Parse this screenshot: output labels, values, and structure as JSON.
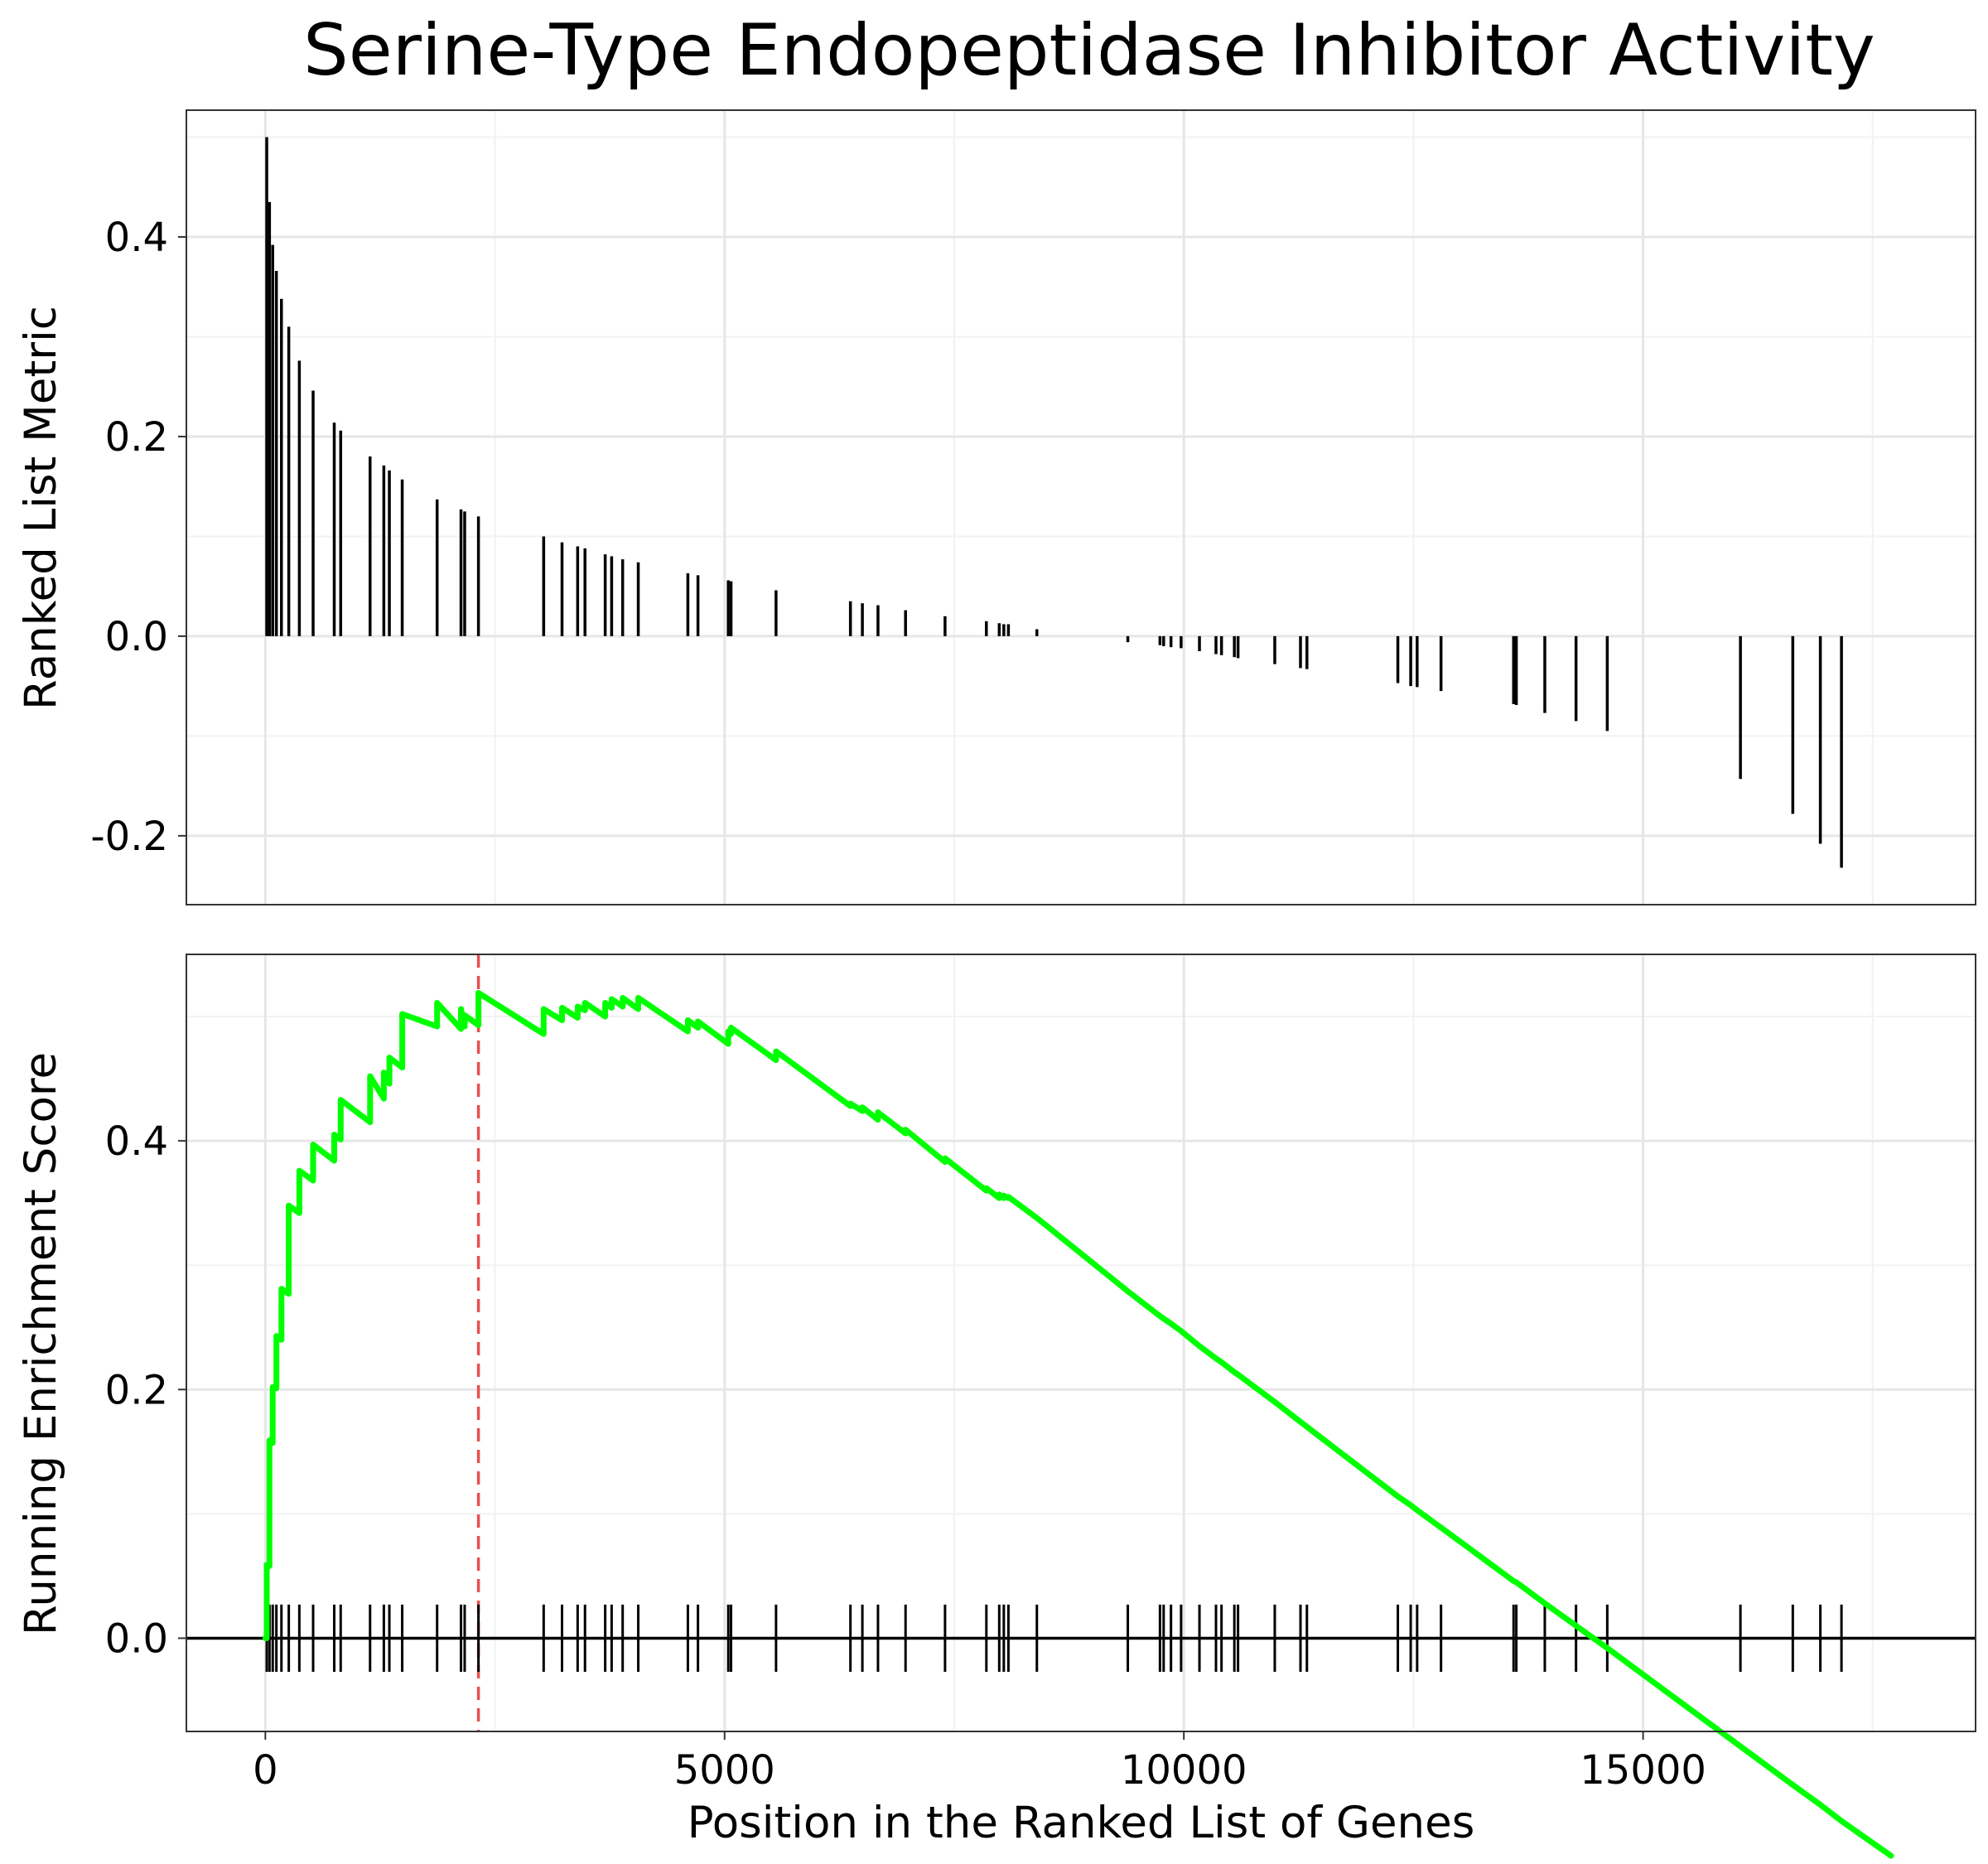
{
  "title": "Serine-Type Endopeptidase Inhibitor Activity",
  "chart_data": [
    {
      "type": "bar",
      "panel": "top",
      "title": "Serine-Type Endopeptidase Inhibitor Activity",
      "xlabel": "",
      "ylabel": "Ranked List Metric",
      "xlim": [
        -860,
        18620
      ],
      "ylim": [
        -0.269,
        0.527
      ],
      "yticks": [
        -0.2,
        0.0,
        0.2,
        0.4
      ],
      "ytick_labels": [
        "-0.2",
        "0.0",
        "0.2",
        "0.4"
      ],
      "grid": true,
      "points": [
        {
          "x": 15,
          "y": 0.5
        },
        {
          "x": 45,
          "y": 0.435
        },
        {
          "x": 80,
          "y": 0.392
        },
        {
          "x": 120,
          "y": 0.366
        },
        {
          "x": 175,
          "y": 0.338
        },
        {
          "x": 255,
          "y": 0.31
        },
        {
          "x": 370,
          "y": 0.276
        },
        {
          "x": 520,
          "y": 0.246
        },
        {
          "x": 750,
          "y": 0.214
        },
        {
          "x": 820,
          "y": 0.206
        },
        {
          "x": 1140,
          "y": 0.18
        },
        {
          "x": 1290,
          "y": 0.171
        },
        {
          "x": 1350,
          "y": 0.166
        },
        {
          "x": 1490,
          "y": 0.157
        },
        {
          "x": 1870,
          "y": 0.137
        },
        {
          "x": 2130,
          "y": 0.127
        },
        {
          "x": 2170,
          "y": 0.125
        },
        {
          "x": 2320,
          "y": 0.12
        },
        {
          "x": 3030,
          "y": 0.1
        },
        {
          "x": 3230,
          "y": 0.094
        },
        {
          "x": 3400,
          "y": 0.09
        },
        {
          "x": 3480,
          "y": 0.088
        },
        {
          "x": 3700,
          "y": 0.082
        },
        {
          "x": 3770,
          "y": 0.08
        },
        {
          "x": 3890,
          "y": 0.077
        },
        {
          "x": 4060,
          "y": 0.074
        },
        {
          "x": 4600,
          "y": 0.063
        },
        {
          "x": 4710,
          "y": 0.061
        },
        {
          "x": 5040,
          "y": 0.056
        },
        {
          "x": 5070,
          "y": 0.055
        },
        {
          "x": 5560,
          "y": 0.046
        },
        {
          "x": 6370,
          "y": 0.035
        },
        {
          "x": 6500,
          "y": 0.033
        },
        {
          "x": 6670,
          "y": 0.031
        },
        {
          "x": 6970,
          "y": 0.026
        },
        {
          "x": 7400,
          "y": 0.02
        },
        {
          "x": 7850,
          "y": 0.015
        },
        {
          "x": 7990,
          "y": 0.013
        },
        {
          "x": 8040,
          "y": 0.012
        },
        {
          "x": 8090,
          "y": 0.012
        },
        {
          "x": 8400,
          "y": 0.007
        },
        {
          "x": 9390,
          "y": -0.006
        },
        {
          "x": 9740,
          "y": -0.009
        },
        {
          "x": 9780,
          "y": -0.01
        },
        {
          "x": 9860,
          "y": -0.011
        },
        {
          "x": 9970,
          "y": -0.012
        },
        {
          "x": 10170,
          "y": -0.015
        },
        {
          "x": 10350,
          "y": -0.018
        },
        {
          "x": 10410,
          "y": -0.019
        },
        {
          "x": 10550,
          "y": -0.021
        },
        {
          "x": 10590,
          "y": -0.022
        },
        {
          "x": 10990,
          "y": -0.028
        },
        {
          "x": 11270,
          "y": -0.032
        },
        {
          "x": 11340,
          "y": -0.033
        },
        {
          "x": 12330,
          "y": -0.047
        },
        {
          "x": 12470,
          "y": -0.05
        },
        {
          "x": 12540,
          "y": -0.051
        },
        {
          "x": 12800,
          "y": -0.055
        },
        {
          "x": 13590,
          "y": -0.068
        },
        {
          "x": 13620,
          "y": -0.069
        },
        {
          "x": 13930,
          "y": -0.077
        },
        {
          "x": 14270,
          "y": -0.085
        },
        {
          "x": 14610,
          "y": -0.095
        },
        {
          "x": 16060,
          "y": -0.143
        },
        {
          "x": 16630,
          "y": -0.178
        },
        {
          "x": 16930,
          "y": -0.208
        },
        {
          "x": 17160,
          "y": -0.232
        }
      ]
    },
    {
      "type": "line",
      "panel": "bottom",
      "xlabel": "Position in the Ranked List of Genes",
      "ylabel": "Running Enrichment Score",
      "xlim": [
        -860,
        18620
      ],
      "ylim": [
        -0.075,
        0.55
      ],
      "xticks": [
        0,
        5000,
        10000,
        15000
      ],
      "xtick_labels": [
        "0",
        "5000",
        "10000",
        "15000"
      ],
      "yticks": [
        0.0,
        0.2,
        0.4
      ],
      "ytick_labels": [
        "0.0",
        "0.2",
        "0.4"
      ],
      "grid": true,
      "line_color": "#00ff00",
      "zero_line_color": "#000000",
      "max_es_position": 2320,
      "max_es_line_color": "#e8504f",
      "hit_tick_ylim": [
        -0.027,
        0.027
      ],
      "hits": [
        15,
        45,
        80,
        120,
        175,
        255,
        370,
        520,
        750,
        820,
        1140,
        1290,
        1350,
        1490,
        1870,
        2130,
        2170,
        2320,
        3030,
        3230,
        3400,
        3480,
        3700,
        3770,
        3890,
        4060,
        4600,
        4710,
        5040,
        5070,
        5560,
        6370,
        6500,
        6670,
        6970,
        7400,
        7850,
        7990,
        8040,
        8090,
        8400,
        9390,
        9740,
        9780,
        9860,
        9970,
        10170,
        10350,
        10410,
        10550,
        10590,
        10990,
        11270,
        11340,
        12330,
        12470,
        12540,
        12800,
        13590,
        13620,
        13930,
        14270,
        14610,
        16060,
        16630,
        16930,
        17160
      ],
      "x": [
        0,
        15,
        15,
        45,
        45,
        80,
        80,
        120,
        120,
        175,
        175,
        255,
        255,
        370,
        370,
        520,
        520,
        750,
        750,
        820,
        820,
        1140,
        1140,
        1290,
        1290,
        1350,
        1350,
        1490,
        1490,
        1870,
        1870,
        2130,
        2130,
        2170,
        2170,
        2320,
        2320,
        3030,
        3030,
        3230,
        3230,
        3400,
        3400,
        3480,
        3480,
        3700,
        3700,
        3770,
        3770,
        3890,
        3890,
        4060,
        4060,
        4600,
        4600,
        4710,
        4710,
        5040,
        5040,
        5070,
        5070,
        5560,
        5560,
        6370,
        6370,
        6500,
        6500,
        6670,
        6670,
        6970,
        6970,
        7400,
        7400,
        7850,
        7850,
        7990,
        7990,
        8040,
        8040,
        8090,
        8090,
        8400,
        8400,
        9390,
        9390,
        9740,
        9740,
        9780,
        9780,
        9860,
        9860,
        9970,
        9970,
        10170,
        10170,
        10350,
        10350,
        10410,
        10410,
        10550,
        10550,
        10590,
        10590,
        10990,
        10990,
        11270,
        11270,
        11340,
        11340,
        12330,
        12330,
        12470,
        12470,
        12540,
        12540,
        12800,
        12800,
        13590,
        13590,
        13620,
        13620,
        13930,
        13930,
        14270,
        14270,
        14610,
        14610,
        16060,
        16060,
        16630,
        16630,
        16930,
        16930,
        17160,
        17160,
        17700
      ],
      "y": [
        0.0,
        0.0,
        0.059,
        0.058,
        0.159,
        0.157,
        0.202,
        0.201,
        0.243,
        0.24,
        0.281,
        0.277,
        0.348,
        0.342,
        0.376,
        0.368,
        0.397,
        0.384,
        0.405,
        0.401,
        0.433,
        0.415,
        0.452,
        0.434,
        0.455,
        0.446,
        0.467,
        0.459,
        0.502,
        0.492,
        0.511,
        0.49,
        0.506,
        0.492,
        0.501,
        0.493,
        0.519,
        0.486,
        0.506,
        0.497,
        0.507,
        0.499,
        0.508,
        0.505,
        0.511,
        0.5,
        0.511,
        0.507,
        0.514,
        0.508,
        0.515,
        0.506,
        0.515,
        0.488,
        0.497,
        0.491,
        0.496,
        0.478,
        0.488,
        0.486,
        0.491,
        0.465,
        0.472,
        0.428,
        0.43,
        0.424,
        0.427,
        0.417,
        0.423,
        0.406,
        0.409,
        0.383,
        0.386,
        0.36,
        0.362,
        0.354,
        0.357,
        0.354,
        0.356,
        0.354,
        0.355,
        0.338,
        0.338,
        0.279,
        0.279,
        0.259,
        0.259,
        0.257,
        0.257,
        0.253,
        0.253,
        0.247,
        0.247,
        0.235,
        0.235,
        0.225,
        0.225,
        0.222,
        0.222,
        0.214,
        0.214,
        0.212,
        0.212,
        0.19,
        0.19,
        0.174,
        0.174,
        0.17,
        0.17,
        0.114,
        0.114,
        0.107,
        0.107,
        0.103,
        0.103,
        0.089,
        0.089,
        0.046,
        0.046,
        0.045,
        0.045,
        0.028,
        0.028,
        0.01,
        0.01,
        -0.008,
        -0.008,
        -0.087,
        -0.087,
        -0.118,
        -0.118,
        -0.134,
        -0.134,
        -0.147,
        -0.147,
        -0.175
      ]
    }
  ]
}
